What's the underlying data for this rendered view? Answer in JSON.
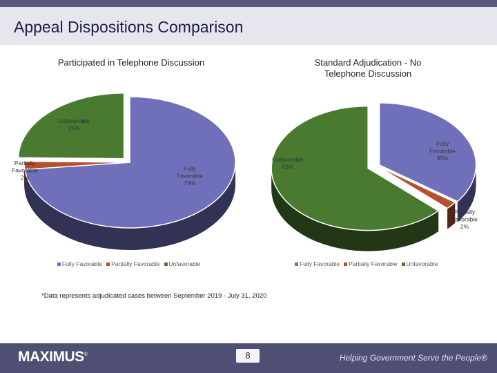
{
  "header": {
    "title": "Appeal Dispositions Comparison"
  },
  "chart_data": [
    {
      "type": "pie",
      "title": "Participated in Telephone Discussion",
      "categories": [
        "Fully Favorable",
        "Partially Favorable",
        "Unfavorable"
      ],
      "values": [
        74,
        2,
        25
      ],
      "labels": [
        [
          "Fully",
          "Favorable",
          "74%"
        ],
        [
          "Partially",
          "Favorable",
          "2%"
        ],
        [
          "Unfavorable",
          "25%"
        ]
      ],
      "colors": [
        "#7070ba",
        "#b5502f",
        "#4a7a30"
      ],
      "legend": "bottom"
    },
    {
      "type": "pie",
      "title_lines": [
        "Standard Adjudication - No",
        "Telephone Discussion"
      ],
      "categories": [
        "Fully Favorable",
        "Partially Favorable",
        "Unfavorable"
      ],
      "values": [
        35,
        2,
        63
      ],
      "labels": [
        [
          "Fully",
          "Favorable",
          "35%"
        ],
        [
          "Partially",
          "Favorable",
          "2%"
        ],
        [
          "Unfavorable",
          "63%"
        ]
      ],
      "colors": [
        "#7070ba",
        "#b5502f",
        "#4a7a30"
      ],
      "legend": "bottom"
    }
  ],
  "footnote": "*Data represents adjudicated cases between September 2019 - July 31, 2020",
  "footer": {
    "logo": "MAXIMUS",
    "logo_mark": "®",
    "page_number": "8",
    "tagline": "Helping Government Serve the People®"
  }
}
